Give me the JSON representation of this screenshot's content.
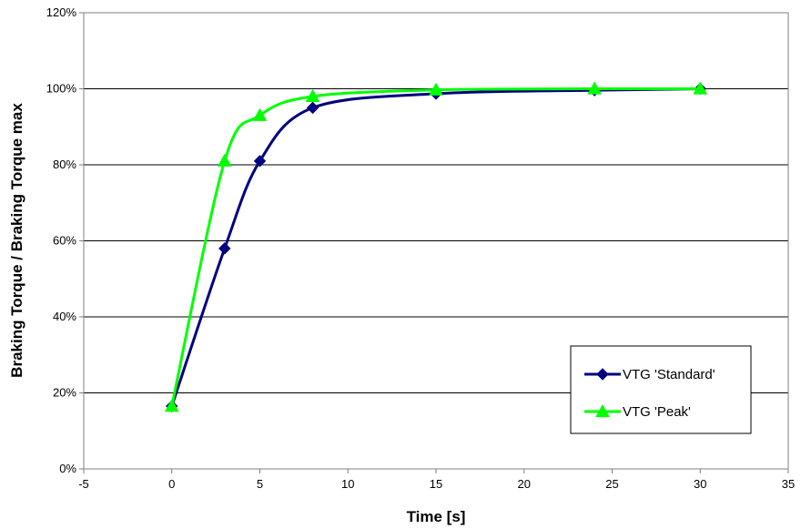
{
  "chart_data": {
    "type": "line",
    "xlabel": "Time [s]",
    "ylabel": "Braking Torque / Braking Torque max",
    "xlim": [
      -5,
      35
    ],
    "ylim": [
      0,
      120
    ],
    "x_ticks": [
      "-5",
      "0",
      "5",
      "10",
      "15",
      "20",
      "25",
      "30",
      "35"
    ],
    "y_ticks": [
      "0%",
      "20%",
      "40%",
      "60%",
      "80%",
      "100%",
      "120%"
    ],
    "grid": "horizontal",
    "legend_position": "bottom-right",
    "series": [
      {
        "name": "VTG 'Standard'",
        "color": "#000080",
        "marker": "diamond",
        "x": [
          0,
          3,
          5,
          8,
          15,
          24,
          30
        ],
        "y": [
          16.5,
          58,
          81,
          95,
          98.7,
          99.6,
          100
        ]
      },
      {
        "name": "VTG 'Peak'",
        "color": "#00FF00",
        "marker": "triangle",
        "x": [
          0,
          3,
          5,
          8,
          15,
          24,
          30
        ],
        "y": [
          16.5,
          81,
          93,
          98,
          99.7,
          100,
          100
        ]
      }
    ]
  }
}
